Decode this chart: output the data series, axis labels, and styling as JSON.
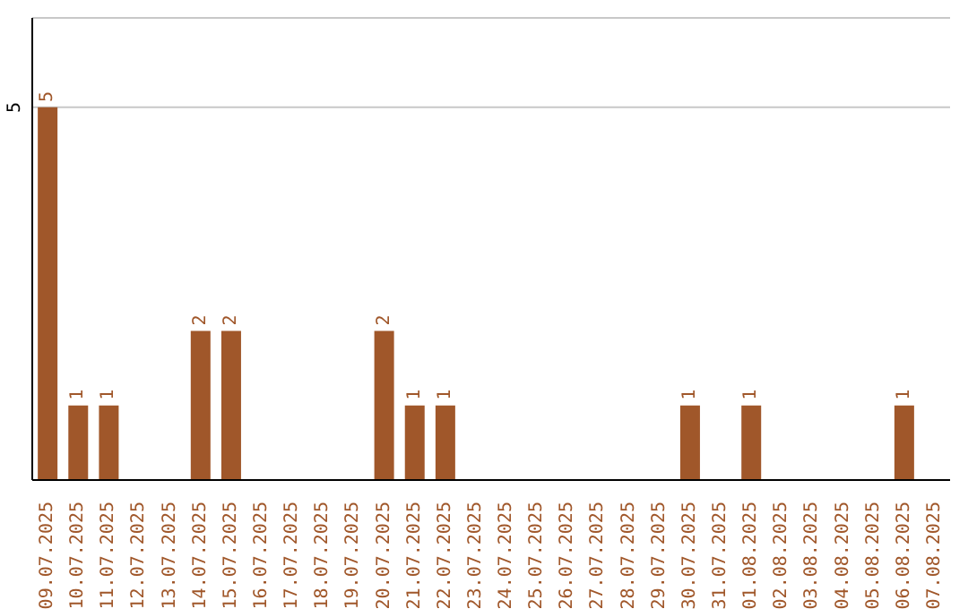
{
  "chart_data": {
    "type": "bar",
    "categories": [
      "09.07.2025",
      "10.07.2025",
      "11.07.2025",
      "12.07.2025",
      "13.07.2025",
      "14.07.2025",
      "15.07.2025",
      "16.07.2025",
      "17.07.2025",
      "18.07.2025",
      "19.07.2025",
      "20.07.2025",
      "21.07.2025",
      "22.07.2025",
      "23.07.2025",
      "24.07.2025",
      "25.07.2025",
      "26.07.2025",
      "27.07.2025",
      "28.07.2025",
      "29.07.2025",
      "30.07.2025",
      "31.07.2025",
      "01.08.2025",
      "02.08.2025",
      "03.08.2025",
      "04.08.2025",
      "05.08.2025",
      "06.08.2025",
      "07.08.2025"
    ],
    "values": [
      5,
      1,
      1,
      0,
      0,
      2,
      2,
      0,
      0,
      0,
      0,
      2,
      1,
      1,
      0,
      0,
      0,
      0,
      0,
      0,
      0,
      1,
      0,
      1,
      0,
      0,
      0,
      0,
      1,
      0
    ],
    "color": "#a0572a",
    "ylim": [
      0,
      6.2
    ],
    "yticks": [
      5
    ],
    "grid": "y",
    "value_labels": [
      "5",
      "1",
      "1",
      null,
      null,
      "2",
      "2",
      null,
      null,
      null,
      null,
      "2",
      "1",
      "1",
      null,
      null,
      null,
      null,
      null,
      null,
      null,
      "1",
      null,
      "1",
      null,
      null,
      null,
      null,
      "1",
      null
    ]
  }
}
